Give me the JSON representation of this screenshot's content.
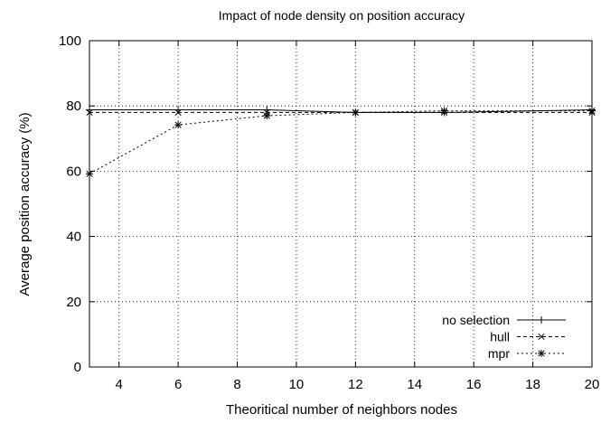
{
  "chart_data": {
    "type": "line",
    "title": "Impact of node density on position accuracy",
    "xlabel": "Theoritical number of neighbors nodes",
    "ylabel": "Average position accuracy (%)",
    "xlim": [
      3,
      20
    ],
    "ylim": [
      0,
      100
    ],
    "xticks": [
      4,
      6,
      8,
      10,
      12,
      14,
      16,
      18,
      20
    ],
    "yticks": [
      0,
      20,
      40,
      60,
      80,
      100
    ],
    "grid": true,
    "legend_position": "bottom-right",
    "x": [
      3,
      6,
      9,
      12,
      15,
      20
    ],
    "series": [
      {
        "name": "no selection",
        "line": "solid",
        "marker": "+",
        "values": [
          78.8,
          78.8,
          78.8,
          78.0,
          78.0,
          78.8
        ]
      },
      {
        "name": "hull",
        "line": "dashed",
        "marker": "x",
        "values": [
          78.0,
          78.0,
          78.0,
          78.0,
          78.0,
          78.0
        ]
      },
      {
        "name": "mpr",
        "line": "dotted",
        "marker": "*",
        "values": [
          59.2,
          74.2,
          77.0,
          78.0,
          78.5,
          78.5
        ]
      }
    ]
  }
}
